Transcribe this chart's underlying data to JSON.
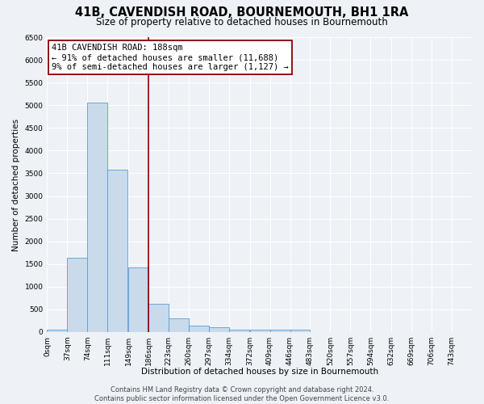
{
  "title": "41B, CAVENDISH ROAD, BOURNEMOUTH, BH1 1RA",
  "subtitle": "Size of property relative to detached houses in Bournemouth",
  "xlabel": "Distribution of detached houses by size in Bournemouth",
  "ylabel": "Number of detached properties",
  "bar_color": "#c9daea",
  "bar_edge_color": "#5b9bd5",
  "bar_left_edges": [
    0,
    37,
    74,
    111,
    149,
    186,
    223,
    260,
    297,
    334,
    372,
    409,
    446
  ],
  "bar_heights": [
    55,
    1630,
    5060,
    3580,
    1420,
    620,
    295,
    145,
    100,
    50,
    50,
    50,
    50
  ],
  "bin_width": 37,
  "property_line_x": 186,
  "property_line_color": "#8b0000",
  "annotation_line1": "41B CAVENDISH ROAD: 188sqm",
  "annotation_line2": "← 91% of detached houses are smaller (11,688)",
  "annotation_line3": "9% of semi-detached houses are larger (1,127) →",
  "annotation_box_color": "#8b0000",
  "ylim": [
    0,
    6500
  ],
  "yticks": [
    0,
    500,
    1000,
    1500,
    2000,
    2500,
    3000,
    3500,
    4000,
    4500,
    5000,
    5500,
    6000,
    6500
  ],
  "xtick_labels": [
    "0sqm",
    "37sqm",
    "74sqm",
    "111sqm",
    "149sqm",
    "186sqm",
    "223sqm",
    "260sqm",
    "297sqm",
    "334sqm",
    "372sqm",
    "409sqm",
    "446sqm",
    "483sqm",
    "520sqm",
    "557sqm",
    "594sqm",
    "632sqm",
    "669sqm",
    "706sqm",
    "743sqm"
  ],
  "xtick_positions": [
    0,
    37,
    74,
    111,
    149,
    186,
    223,
    260,
    297,
    334,
    372,
    409,
    446,
    483,
    520,
    557,
    594,
    632,
    669,
    706,
    743
  ],
  "footer_text": "Contains HM Land Registry data © Crown copyright and database right 2024.\nContains public sector information licensed under the Open Government Licence v3.0.",
  "bg_color": "#eef2f7",
  "grid_color": "#ffffff",
  "title_fontsize": 10.5,
  "subtitle_fontsize": 8.5,
  "axis_label_fontsize": 7.5,
  "tick_fontsize": 6.5,
  "annotation_fontsize": 7.5,
  "footer_fontsize": 6.0
}
